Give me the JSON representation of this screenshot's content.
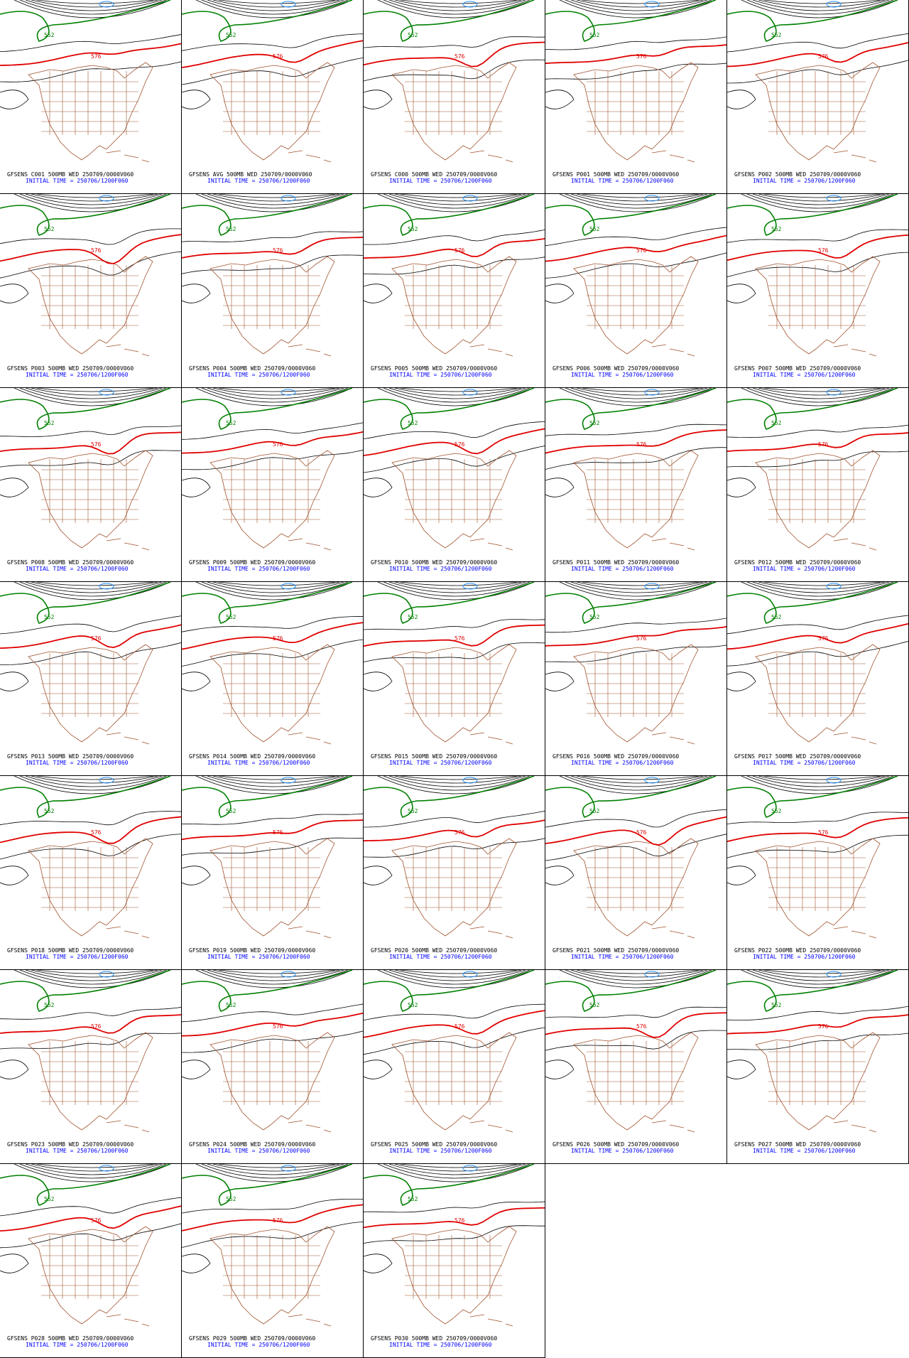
{
  "contour_labels": {
    "green": "552",
    "red": "576"
  },
  "panels": [
    {
      "title": "GFSENS C001 500MB WED 250709/0000V060",
      "init": "INITIAL TIME = 250706/1200F060"
    },
    {
      "title": "GFSENS AVG 500MB WED 250709/0000V060",
      "init": "INITIAL TIME = 250706/1200F060"
    },
    {
      "title": "GFSENS C000 500MB WED 250709/0000V060",
      "init": "INITIAL TIME = 250706/1200F060"
    },
    {
      "title": "GFSENS P001 500MB WED 250709/0000V060",
      "init": "INITIAL TIME = 250706/1200F060"
    },
    {
      "title": "GFSENS P002 500MB WED 250709/0000V060",
      "init": "INITIAL TIME = 250706/1200F060"
    },
    {
      "title": "GFSENS P003 500MB WED 250709/0000V060",
      "init": "INITIAL TIME = 250706/1200F060"
    },
    {
      "title": "GFSENS P004 500MB WED 250709/0000V060",
      "init": "INITIAL TIME = 250706/1200F060"
    },
    {
      "title": "GFSENS P005 500MB WED 250709/0000V060",
      "init": "INITIAL TIME = 250706/1200F060"
    },
    {
      "title": "GFSENS P006 500MB WED 250709/0000V060",
      "init": "INITIAL TIME = 250706/1200F060"
    },
    {
      "title": "GFSENS P007 500MB WED 250709/0000V060",
      "init": "INITIAL TIME = 250706/1200F060"
    },
    {
      "title": "GFSENS P008 500MB WED 250709/0000V060",
      "init": "INITIAL TIME = 250706/1200F060"
    },
    {
      "title": "GFSENS P009 500MB WED 250709/0000V060",
      "init": "INITIAL TIME = 250706/1200F060"
    },
    {
      "title": "GFSENS P010 500MB WED 250709/0000V060",
      "init": "INITIAL TIME = 250706/1200F060"
    },
    {
      "title": "GFSENS P011 500MB WED 250709/0000V060",
      "init": "INITIAL TIME = 250706/1200F060"
    },
    {
      "title": "GFSENS P012 500MB WED 250709/0000V060",
      "init": "INITIAL TIME = 250706/1200F060"
    },
    {
      "title": "GFSENS P013 500MB WED 250709/0000V060",
      "init": "INITIAL TIME = 250706/1200F060"
    },
    {
      "title": "GFSENS P014 500MB WED 250709/0000V060",
      "init": "INITIAL TIME = 250706/1200F060"
    },
    {
      "title": "GFSENS P015 500MB WED 250709/0000V060",
      "init": "INITIAL TIME = 250706/1200F060"
    },
    {
      "title": "GFSENS P016 500MB WED 250709/0000V060",
      "init": "INITIAL TIME = 250706/1200F060"
    },
    {
      "title": "GFSENS P017 500MB WED 250709/0000V060",
      "init": "INITIAL TIME = 250706/1200F060"
    },
    {
      "title": "GFSENS P018 500MB WED 250709/0000V060",
      "init": "INITIAL TIME = 250706/1200F060"
    },
    {
      "title": "GFSENS P019 500MB WED 250709/0000V060",
      "init": "INITIAL TIME = 250706/1200F060"
    },
    {
      "title": "GFSENS P020 500MB WED 250709/0000V060",
      "init": "INITIAL TIME = 250706/1200F060"
    },
    {
      "title": "GFSENS P021 500MB WED 250709/0000V060",
      "init": "INITIAL TIME = 250706/1200F060"
    },
    {
      "title": "GFSENS P022 500MB WED 250709/0000V060",
      "init": "INITIAL TIME = 250706/1200F060"
    },
    {
      "title": "GFSENS P023 500MB WED 250709/0000V060",
      "init": "INITIAL TIME = 250706/1200F060"
    },
    {
      "title": "GFSENS P024 500MB WED 250709/0000V060",
      "init": "INITIAL TIME = 250706/1200F060"
    },
    {
      "title": "GFSENS P025 500MB WED 250709/0000V060",
      "init": "INITIAL TIME = 250706/1200F060"
    },
    {
      "title": "GFSENS P026 500MB WED 250709/0000V060",
      "init": "INITIAL TIME = 250706/1200F060"
    },
    {
      "title": "GFSENS P027 500MB WED 250709/0000V060",
      "init": "INITIAL TIME = 250706/1200F060"
    },
    {
      "title": "GFSENS P028 500MB WED 250709/0000V060",
      "init": "INITIAL TIME = 250706/1200F060"
    },
    {
      "title": "GFSENS P029 500MB WED 250709/0000V060",
      "init": "INITIAL TIME = 250706/1200F060"
    },
    {
      "title": "GFSENS P030 500MB WED 250709/0000V060",
      "init": "INITIAL TIME = 250706/1200F060"
    }
  ]
}
